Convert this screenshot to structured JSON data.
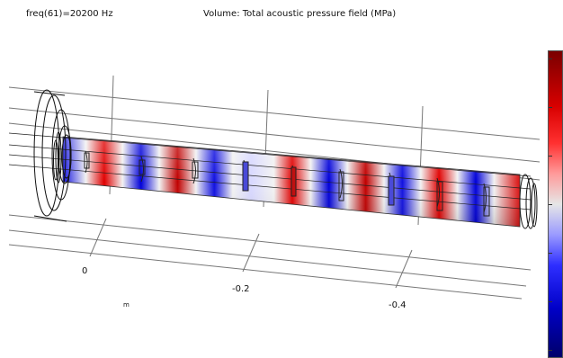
{
  "header": {
    "frequency_label": "freq(61)=20200 Hz",
    "plot_title": "Volume: Total acoustic pressure field (MPa)"
  },
  "axis": {
    "ticks": [
      "0",
      "-0.2",
      "-0.4"
    ],
    "unit": "m"
  },
  "colors": {
    "max": "#7a0000",
    "high": "#d80000",
    "mid": "#e6e6e6",
    "low": "#0000c8",
    "min": "#00006a"
  },
  "colormap": "red-white-blue"
}
